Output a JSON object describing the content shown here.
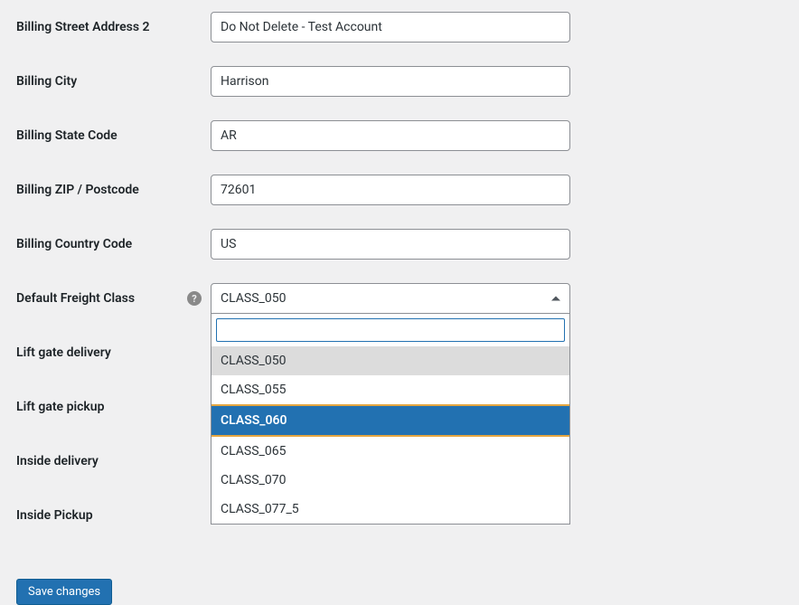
{
  "fields": {
    "billing_street_2": {
      "label": "Billing Street Address 2",
      "value": "Do Not Delete - Test Account"
    },
    "billing_city": {
      "label": "Billing City",
      "value": "Harrison"
    },
    "billing_state": {
      "label": "Billing State Code",
      "value": "AR"
    },
    "billing_zip": {
      "label": "Billing ZIP / Postcode",
      "value": "72601"
    },
    "billing_country": {
      "label": "Billing Country Code",
      "value": "US"
    },
    "freight_class": {
      "label": "Default Freight Class",
      "selected": "CLASS_050",
      "has_help": true,
      "search_value": "",
      "options": [
        {
          "label": "CLASS_050",
          "selected": true,
          "highlighted": false
        },
        {
          "label": "CLASS_055",
          "selected": false,
          "highlighted": false
        },
        {
          "label": "CLASS_060",
          "selected": false,
          "highlighted": true
        },
        {
          "label": "CLASS_065",
          "selected": false,
          "highlighted": false
        },
        {
          "label": "CLASS_070",
          "selected": false,
          "highlighted": false
        },
        {
          "label": "CLASS_077_5",
          "selected": false,
          "highlighted": false
        }
      ]
    },
    "lift_gate_delivery": {
      "label": "Lift gate delivery"
    },
    "lift_gate_pickup": {
      "label": "Lift gate pickup"
    },
    "inside_delivery": {
      "label": "Inside delivery"
    },
    "inside_pickup": {
      "label": "Inside Pickup"
    }
  },
  "save_button": "Save changes",
  "colors": {
    "accent": "#2271b1",
    "background": "#f0f0f1",
    "border": "#8c8f94",
    "text": "#2c3338",
    "highlight_border": "#e5a640",
    "selected_bg": "#dcdcdc",
    "help_bg": "#898989"
  }
}
